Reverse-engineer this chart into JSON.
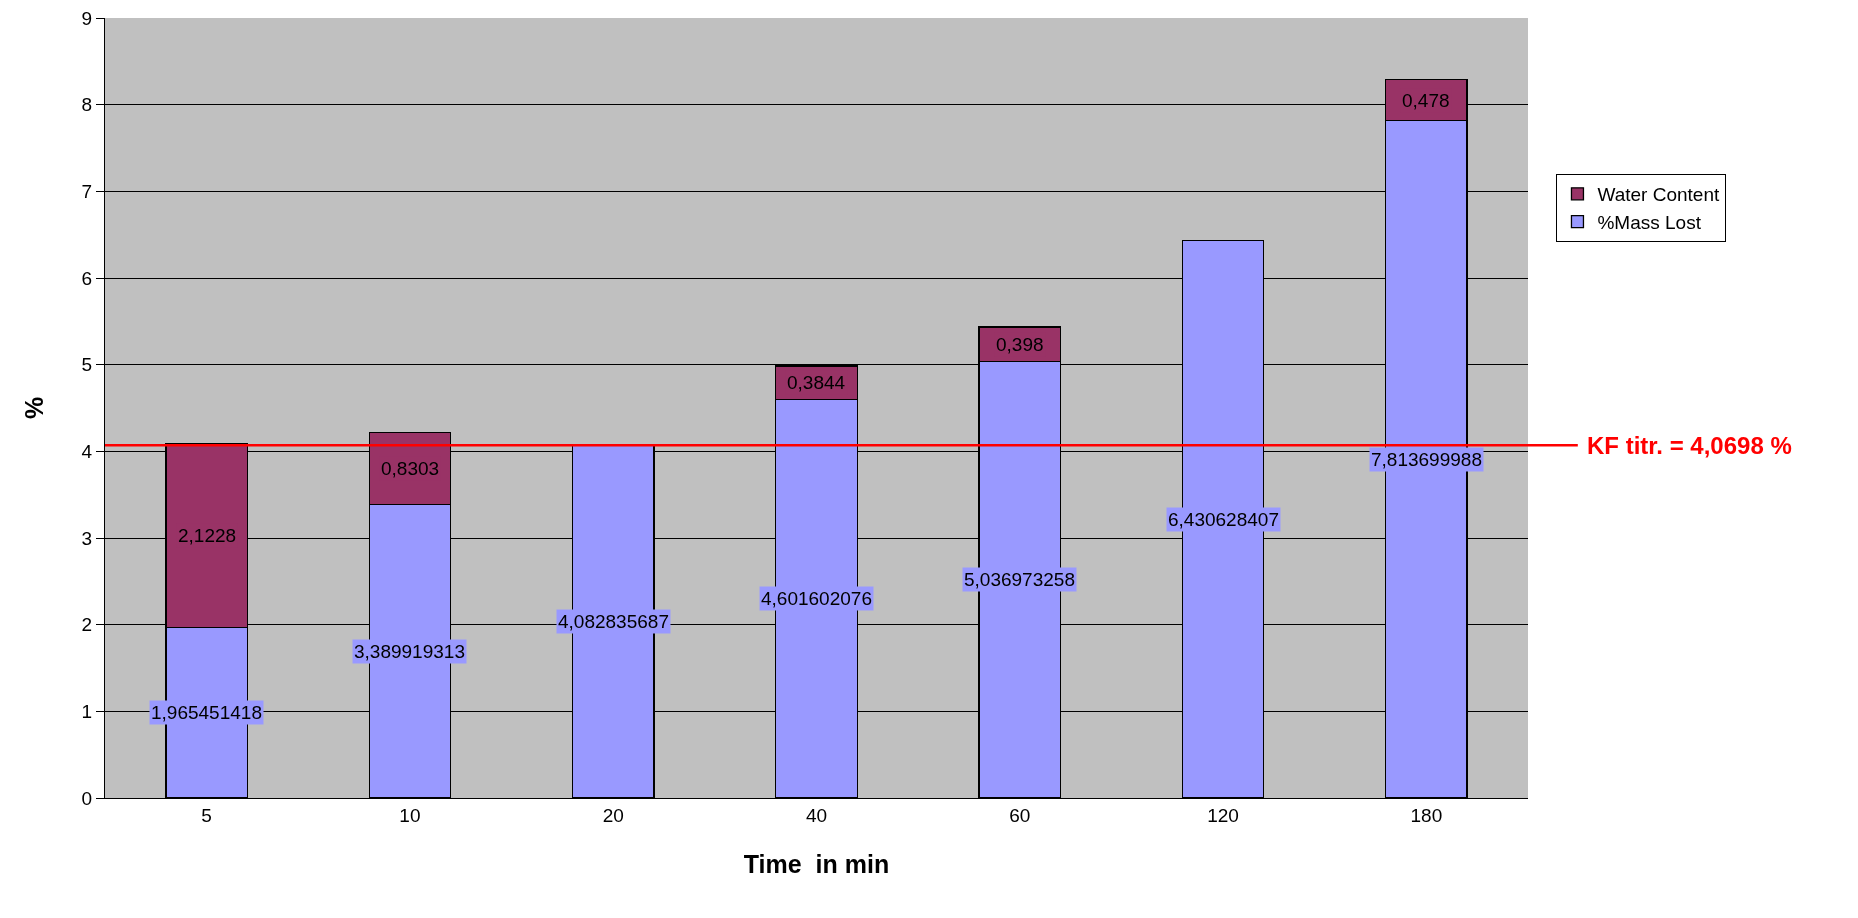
{
  "chart_data": {
    "type": "bar",
    "stacked": true,
    "xlabel": "Time  in min",
    "ylabel": "%",
    "categories": [
      "5",
      "10",
      "20",
      "40",
      "60",
      "120",
      "180"
    ],
    "series": [
      {
        "name": "%Mass Lost",
        "color": "#9999ff",
        "values": [
          1.965451418,
          3.389919313,
          4.082835687,
          4.601602076,
          5.036973258,
          6.430628407,
          7.813699988
        ],
        "value_labels": [
          "1,965451418",
          "3,389919313",
          "4,082835687",
          "4,601602076",
          "5,036973258",
          "6,430628407",
          "7,813699988"
        ]
      },
      {
        "name": "Water Content",
        "color": "#993366",
        "values": [
          2.1228,
          0.8303,
          null,
          0.3844,
          0.398,
          null,
          0.478
        ],
        "value_labels": [
          "2,1228",
          "0,8303",
          null,
          "0,3844",
          "0,398",
          null,
          "0,478"
        ]
      }
    ],
    "ylim": [
      0,
      9
    ],
    "yticks": [
      0,
      1,
      2,
      3,
      4,
      5,
      6,
      7,
      8,
      9
    ],
    "grid": "y",
    "legend": "right",
    "ref_lines": [
      {
        "axis": "y",
        "value": 4.0698,
        "label": "KF titr. = 4,0698 %",
        "color": "#ff0000"
      }
    ]
  }
}
